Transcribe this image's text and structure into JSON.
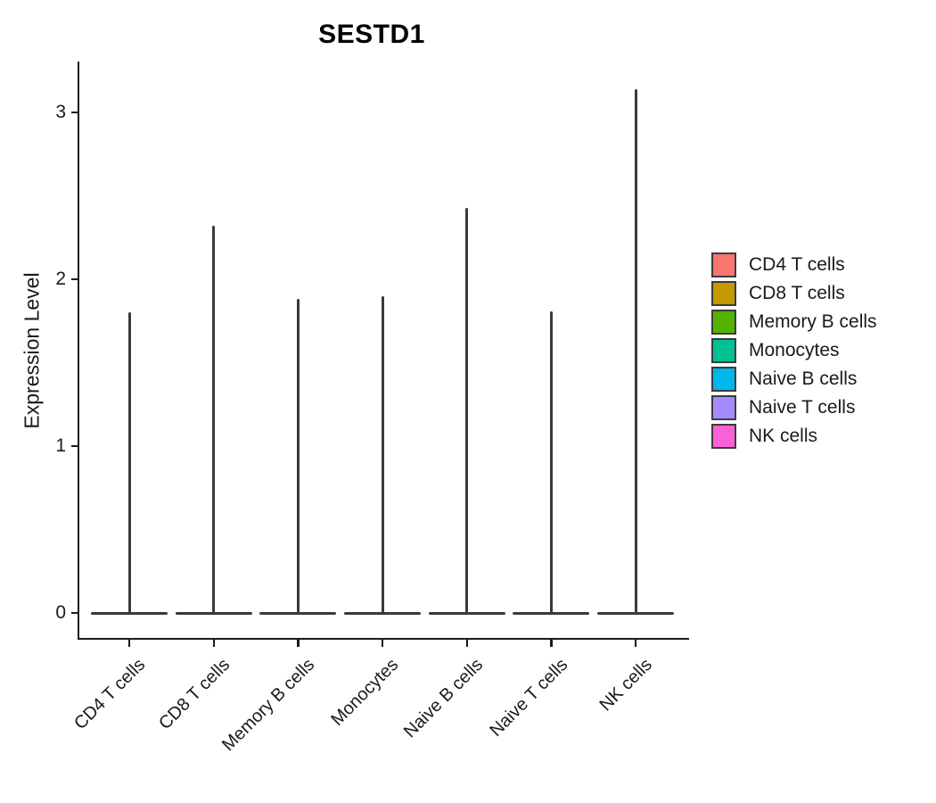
{
  "title": "SESTD1",
  "y_axis": {
    "label": "Expression Level",
    "tick_labels": [
      "0",
      "1",
      "2",
      "3"
    ]
  },
  "x_axis": {
    "tick_labels": [
      "CD4 T cells",
      "CD8 T cells",
      "Memory B cells",
      "Monocytes",
      "Naive B cells",
      "Naive T cells",
      "NK cells"
    ]
  },
  "legend": {
    "items": [
      {
        "label": "CD4 T cells",
        "color": "#F8766D"
      },
      {
        "label": "CD8 T cells",
        "color": "#C49A00"
      },
      {
        "label": "Memory B cells",
        "color": "#53B400"
      },
      {
        "label": "Monocytes",
        "color": "#00C094"
      },
      {
        "label": "Naive B cells",
        "color": "#00B6EB"
      },
      {
        "label": "Naive T cells",
        "color": "#A58AFF"
      },
      {
        "label": "NK cells",
        "color": "#FB61D7"
      }
    ]
  },
  "chart_data": {
    "type": "violin",
    "title": "SESTD1",
    "xlabel": "",
    "ylabel": "Expression Level",
    "ylim": [
      0,
      3.3
    ],
    "yticks": [
      0,
      1,
      2,
      3
    ],
    "grid": false,
    "legend_position": "right",
    "violin_outline_color": "#3A3A3A",
    "categories": [
      "CD4 T cells",
      "CD8 T cells",
      "Memory B cells",
      "Monocytes",
      "Naive B cells",
      "Naive T cells",
      "NK cells"
    ],
    "series": [
      {
        "name": "CD4 T cells",
        "color": "#F8766D",
        "expression_min": 0,
        "expression_max": 1.8,
        "density_peak_at": 0
      },
      {
        "name": "CD8 T cells",
        "color": "#C49A00",
        "expression_min": 0,
        "expression_max": 2.32,
        "density_peak_at": 0
      },
      {
        "name": "Memory B cells",
        "color": "#53B400",
        "expression_min": 0,
        "expression_max": 1.88,
        "density_peak_at": 0
      },
      {
        "name": "Monocytes",
        "color": "#00C094",
        "expression_min": 0,
        "expression_max": 1.9,
        "density_peak_at": 0
      },
      {
        "name": "Naive B cells",
        "color": "#00B6EB",
        "expression_min": 0,
        "expression_max": 2.43,
        "density_peak_at": 0
      },
      {
        "name": "Naive T cells",
        "color": "#A58AFF",
        "expression_min": 0,
        "expression_max": 1.81,
        "density_peak_at": 0
      },
      {
        "name": "NK cells",
        "color": "#FB61D7",
        "expression_min": 0,
        "expression_max": 3.14,
        "density_peak_at": 0
      }
    ]
  }
}
